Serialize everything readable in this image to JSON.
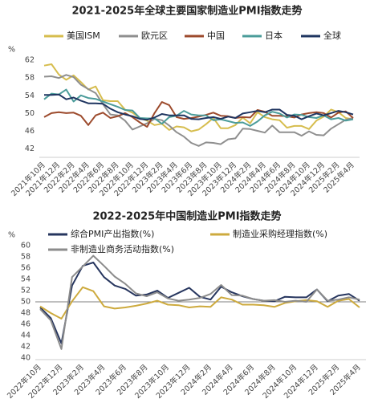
{
  "chart_data": [
    {
      "type": "line",
      "title": "2021-2025年全球主要国家制造业PMI指数走势",
      "y_unit": "%",
      "categories": [
        "2021年10月",
        null,
        "2021年12月",
        null,
        "2022年2月",
        null,
        "2022年4月",
        null,
        "2022年6月",
        null,
        "2022年8月",
        null,
        "2022年10月",
        null,
        "2022年12月",
        null,
        "2023年2月",
        null,
        "2023年4月",
        null,
        "2023年6月",
        null,
        "2023年8月",
        null,
        "2023年10月",
        null,
        "2023年12月",
        null,
        "2024年2月",
        null,
        "2024年4月",
        null,
        "2024年6月",
        null,
        "2024年8月",
        null,
        "2024年10月",
        null,
        "2024年12月",
        null,
        "2025年2月",
        null,
        "2025年4月"
      ],
      "ylim": [
        40.5,
        64
      ],
      "yticks": [
        42,
        46,
        50,
        54,
        58,
        62
      ],
      "series": [
        {
          "name": "美国ISM",
          "color": "#d6bd4e",
          "values": [
            60.8,
            61.1,
            58.8,
            57.6,
            58.6,
            57.1,
            55.4,
            56.1,
            53.0,
            52.8,
            52.8,
            50.9,
            50.2,
            49.0,
            48.4,
            47.4,
            47.7,
            46.3,
            47.1,
            46.9,
            46.0,
            46.4,
            47.6,
            49.0,
            46.7,
            46.7,
            47.4,
            49.1,
            47.8,
            50.3,
            49.2,
            48.7,
            48.5,
            46.8,
            47.2,
            47.2,
            46.5,
            48.4,
            49.3,
            50.9,
            50.3,
            49.0,
            48.7
          ]
        },
        {
          "name": "欧元区",
          "color": "#8f8f8f",
          "values": [
            58.3,
            58.4,
            58.0,
            58.7,
            58.2,
            56.5,
            55.5,
            54.6,
            52.1,
            49.8,
            49.6,
            48.4,
            46.4,
            47.1,
            47.8,
            48.8,
            48.5,
            47.3,
            45.8,
            44.8,
            43.4,
            42.7,
            43.5,
            43.4,
            43.1,
            44.2,
            44.4,
            46.6,
            46.5,
            46.1,
            45.7,
            47.3,
            45.8,
            45.8,
            45.8,
            45.0,
            46.0,
            45.2,
            45.1,
            46.6,
            47.6,
            48.6,
            49.0
          ]
        },
        {
          "name": "中国",
          "color": "#9c4a2c",
          "values": [
            49.2,
            50.1,
            50.3,
            50.1,
            50.2,
            49.5,
            47.4,
            49.6,
            50.2,
            49.0,
            49.4,
            50.1,
            49.2,
            48.0,
            47.0,
            50.1,
            52.6,
            51.9,
            49.2,
            48.8,
            49.0,
            49.3,
            49.7,
            50.2,
            49.5,
            49.4,
            49.0,
            49.2,
            49.1,
            50.8,
            50.4,
            49.5,
            49.5,
            49.4,
            49.1,
            49.8,
            50.1,
            50.3,
            50.1,
            49.1,
            50.2,
            50.5,
            49.0
          ]
        },
        {
          "name": "日本",
          "color": "#4b9c9a",
          "values": [
            53.2,
            54.5,
            54.3,
            55.4,
            52.7,
            54.1,
            53.5,
            53.3,
            52.7,
            52.1,
            51.5,
            50.8,
            50.7,
            49.0,
            48.9,
            48.9,
            47.7,
            49.2,
            49.5,
            50.6,
            49.8,
            49.6,
            49.6,
            48.5,
            48.7,
            48.3,
            47.9,
            48.0,
            47.2,
            48.2,
            49.6,
            50.4,
            50.0,
            49.1,
            49.8,
            49.7,
            49.2,
            49.0,
            49.6,
            48.7,
            49.0,
            48.4,
            48.7
          ]
        },
        {
          "name": "全球",
          "color": "#1f3560",
          "values": [
            54.2,
            54.2,
            54.3,
            53.2,
            53.6,
            52.9,
            52.3,
            52.3,
            52.2,
            51.1,
            50.3,
            49.8,
            49.4,
            48.8,
            48.6,
            49.1,
            49.9,
            49.6,
            49.6,
            49.6,
            48.8,
            48.7,
            49.0,
            49.2,
            48.8,
            49.3,
            49.0,
            50.0,
            50.3,
            50.6,
            50.3,
            50.9,
            50.9,
            49.7,
            49.5,
            48.7,
            49.4,
            50.0,
            49.6,
            50.1,
            50.6,
            50.3,
            49.8
          ]
        }
      ]
    },
    {
      "type": "line",
      "title": "2022-2025年中国制造业PMI指数走势",
      "y_unit": "%",
      "categories": [
        "2022年10月",
        null,
        "2022年12月",
        null,
        "2023年2月",
        null,
        "2023年4月",
        null,
        "2023年6月",
        null,
        "2023年8月",
        null,
        "2023年10月",
        null,
        "2023年12月",
        null,
        "2024年2月",
        null,
        "2024年4月",
        null,
        "2024年6月",
        null,
        "2024年8月",
        null,
        "2024年10月",
        null,
        "2024年12月",
        null,
        "2025年2月",
        null,
        "2025年4月"
      ],
      "ylim": [
        40,
        60
      ],
      "yticks": [
        40,
        42,
        44,
        46,
        48,
        50,
        52,
        54,
        56,
        58,
        60
      ],
      "reference_line": 50,
      "series": [
        {
          "name": "综合PMI产出指数(%)",
          "color": "#26355e",
          "values": [
            49.0,
            47.1,
            42.6,
            52.9,
            56.4,
            57.0,
            54.4,
            52.9,
            52.3,
            51.1,
            51.3,
            52.0,
            50.7,
            51.6,
            52.5,
            50.9,
            50.4,
            52.7,
            51.7,
            51.0,
            50.5,
            50.2,
            50.1,
            50.9,
            50.8,
            50.8,
            52.2,
            50.1,
            51.1,
            51.4,
            50.2
          ]
        },
        {
          "name": "制造业采购经理指数(%)",
          "color": "#cdaa3e",
          "values": [
            49.2,
            48.0,
            47.0,
            50.1,
            52.6,
            51.9,
            49.2,
            48.8,
            49.0,
            49.3,
            49.7,
            50.2,
            49.5,
            49.4,
            49.0,
            49.2,
            49.1,
            50.8,
            50.4,
            49.5,
            49.5,
            49.4,
            49.1,
            49.8,
            50.1,
            50.3,
            50.1,
            49.1,
            50.2,
            50.5,
            49.0
          ]
        },
        {
          "name": "非制造业商务活动指数(%)",
          "color": "#8c8c8c",
          "values": [
            48.7,
            46.7,
            41.6,
            54.4,
            56.3,
            58.2,
            56.4,
            54.5,
            53.2,
            51.5,
            51.0,
            51.7,
            50.6,
            50.2,
            50.4,
            50.7,
            51.4,
            53.0,
            51.2,
            51.1,
            50.5,
            50.2,
            50.3,
            50.0,
            50.2,
            50.0,
            52.2,
            50.2,
            50.4,
            50.8,
            50.4
          ]
        }
      ]
    }
  ]
}
